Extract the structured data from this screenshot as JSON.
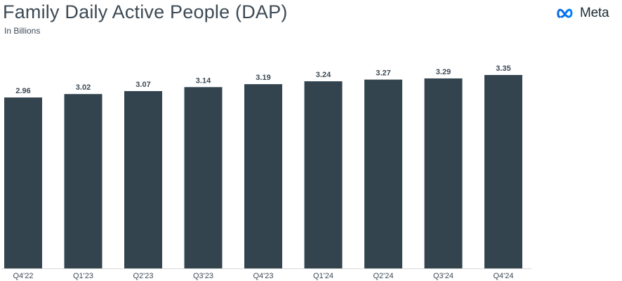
{
  "header": {
    "title": "Family Daily Active People (DAP)",
    "subtitle": "In Billions",
    "logo_text": "Meta"
  },
  "colors": {
    "bar": "#33444f",
    "text": "#3d4a55",
    "axis": "#d9d9d9"
  },
  "chart_data": {
    "type": "bar",
    "title": "Family Daily Active People (DAP)",
    "subtitle": "In Billions",
    "categories": [
      "Q4'22",
      "Q1'23",
      "Q2'23",
      "Q3'23",
      "Q4'23",
      "Q1'24",
      "Q2'24",
      "Q3'24",
      "Q4'24"
    ],
    "values": [
      2.96,
      3.02,
      3.07,
      3.14,
      3.19,
      3.24,
      3.27,
      3.29,
      3.35
    ],
    "value_labels": [
      "2.96",
      "3.02",
      "3.07",
      "3.14",
      "3.19",
      "3.24",
      "3.27",
      "3.29",
      "3.35"
    ],
    "xlabel": "",
    "ylabel": "",
    "ylim": [
      0,
      3.35
    ],
    "grid": false,
    "legend": "none"
  }
}
